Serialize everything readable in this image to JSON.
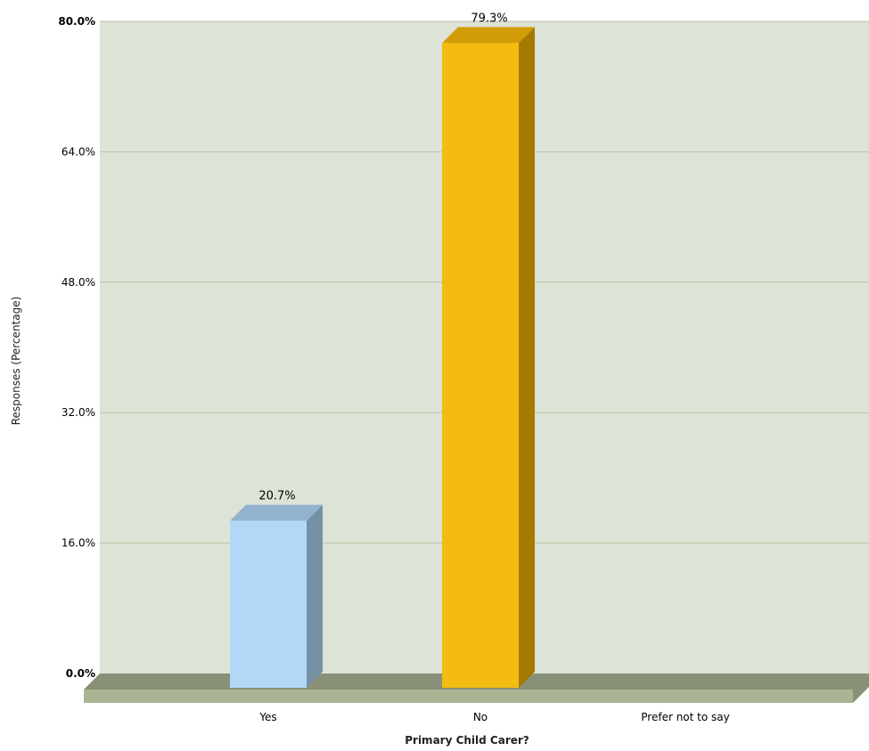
{
  "chart_data": {
    "type": "bar",
    "title": "",
    "xlabel": "Primary Child Carer?",
    "ylabel": "Responses (Percentage)",
    "categories": [
      "Yes",
      "No",
      "Prefer not to say"
    ],
    "values": [
      20.7,
      79.3,
      0
    ],
    "data_labels": [
      "20.7%",
      "79.3%",
      ""
    ],
    "ylim": [
      0,
      80
    ],
    "yticks": [
      "0.0%",
      "16.0%",
      "32.0%",
      "48.0%",
      "64.0%",
      "80.0%"
    ],
    "grid": true,
    "legend": "none",
    "colors": {
      "plot_background": "#dde3d6",
      "grid_line": "#b9c4a6",
      "floor_top": "#889078",
      "floor_front": "#a9b592",
      "bar_yes_front": "#b3d8f7",
      "bar_yes_top": "#93b2ce",
      "bar_yes_side": "#7690a6",
      "bar_no_front": "#f4bb11",
      "bar_no_top": "#d29c06",
      "bar_no_side": "#a67a00"
    }
  }
}
